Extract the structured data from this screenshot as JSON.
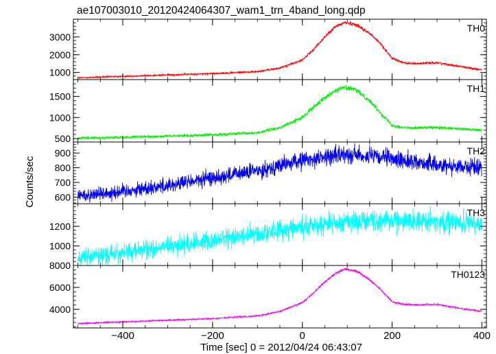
{
  "title": "ae107003010_20120424064307_wam1_trn_4band_long.qdp",
  "chart_data": {
    "type": "line",
    "title": "ae107003010_20120424064307_wam1_trn_4band_long.qdp",
    "xlabel": "Time [sec] 0 = 2012/04/24 06:43:07",
    "ylabel": "Counts/sec",
    "xlim": [
      -510,
      410
    ],
    "x_ticks": [
      -400,
      -200,
      0,
      200,
      400
    ],
    "x_tick_labels": [
      "−400",
      "−200",
      "0",
      "200",
      "400"
    ],
    "grid": false,
    "panels": [
      {
        "name": "TH0",
        "color": "#ff0000",
        "ylim": [
          600,
          4000
        ],
        "y_ticks": [
          1000,
          2000,
          3000
        ],
        "y_tick_labels": [
          "1000",
          "2000",
          "3000"
        ],
        "noise": 35,
        "x": [
          -500,
          -400,
          -300,
          -200,
          -100,
          -50,
          0,
          25,
          50,
          75,
          95,
          120,
          150,
          175,
          200,
          225,
          250,
          300,
          350,
          400
        ],
        "values": [
          700,
          780,
          860,
          940,
          1050,
          1250,
          1700,
          2300,
          3000,
          3600,
          3820,
          3700,
          3200,
          2600,
          1800,
          1550,
          1500,
          1550,
          1350,
          1150
        ]
      },
      {
        "name": "TH1",
        "color": "#00ee00",
        "ylim": [
          420,
          1900
        ],
        "y_ticks": [
          500,
          1000,
          1500
        ],
        "y_tick_labels": [
          "500",
          "1000",
          "1500"
        ],
        "noise": 25,
        "x": [
          -500,
          -400,
          -300,
          -200,
          -100,
          -50,
          0,
          25,
          50,
          75,
          95,
          120,
          150,
          175,
          200,
          225,
          250,
          300,
          350,
          400
        ],
        "values": [
          510,
          530,
          560,
          590,
          640,
          760,
          1000,
          1250,
          1480,
          1650,
          1720,
          1650,
          1400,
          1100,
          820,
          760,
          760,
          760,
          730,
          700
        ]
      },
      {
        "name": "TH2",
        "color": "#0000ee",
        "ylim": [
          555,
          975
        ],
        "y_ticks": [
          600,
          700,
          800,
          900
        ],
        "y_tick_labels": [
          "600",
          "700",
          "800",
          "900"
        ],
        "noise": 38,
        "x": [
          -500,
          -400,
          -300,
          -200,
          -100,
          0,
          100,
          200,
          300,
          400
        ],
        "values": [
          610,
          640,
          680,
          730,
          780,
          850,
          895,
          860,
          820,
          800
        ]
      },
      {
        "name": "TH3",
        "color": "#00ffff",
        "ylim": [
          800,
          1430
        ],
        "y_ticks": [
          1000,
          1200
        ],
        "y_tick_labels": [
          "1000",
          "1200"
        ],
        "noise": 70,
        "x": [
          -500,
          -400,
          -300,
          -200,
          -100,
          0,
          100,
          200,
          300,
          400
        ],
        "values": [
          880,
          930,
          990,
          1060,
          1120,
          1200,
          1250,
          1260,
          1250,
          1220
        ]
      },
      {
        "name": "TH0123",
        "color": "#ee00ee",
        "ylim": [
          2300,
          8000
        ],
        "y_ticks": [
          4000,
          6000,
          8000
        ],
        "y_tick_labels": [
          "4000",
          "6000",
          "8000"
        ],
        "noise": 55,
        "x": [
          -500,
          -400,
          -300,
          -200,
          -100,
          -50,
          0,
          25,
          50,
          75,
          95,
          120,
          150,
          175,
          200,
          225,
          250,
          300,
          350,
          400
        ],
        "values": [
          2700,
          2850,
          3000,
          3150,
          3400,
          3800,
          4600,
          5500,
          6500,
          7300,
          7700,
          7500,
          6700,
          5800,
          4700,
          4450,
          4400,
          4450,
          4100,
          3800
        ]
      }
    ]
  }
}
